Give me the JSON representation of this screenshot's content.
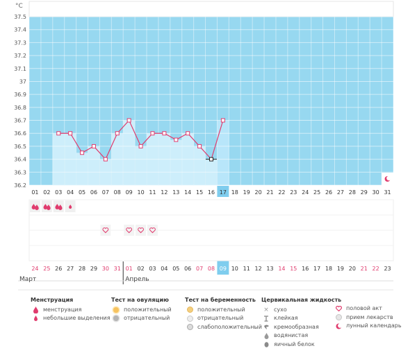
{
  "chart_data": {
    "type": "line",
    "unit_label": "°C",
    "y_ticks": [
      "36.2",
      "36.3",
      "36.4",
      "36.5",
      "36.6",
      "36.7",
      "36.8",
      "36.9",
      "37",
      "37.1",
      "37.2",
      "37.3",
      "37.4",
      "37.5"
    ],
    "ylim": [
      36.2,
      37.5
    ],
    "days": [
      "01",
      "02",
      "03",
      "04",
      "05",
      "06",
      "07",
      "08",
      "09",
      "10",
      "11",
      "12",
      "13",
      "14",
      "15",
      "16",
      "17",
      "18",
      "19",
      "20",
      "21",
      "22",
      "23",
      "24",
      "25",
      "26",
      "27",
      "28",
      "29",
      "30",
      "31"
    ],
    "temperatures": [
      null,
      null,
      36.6,
      36.6,
      36.45,
      36.5,
      36.4,
      36.6,
      36.7,
      36.5,
      36.6,
      36.6,
      36.55,
      36.6,
      36.5,
      36.4,
      36.7,
      null,
      null,
      null,
      null,
      null,
      null,
      null,
      null,
      null,
      null,
      null,
      null,
      null,
      null
    ],
    "selected_day": "17",
    "cycle_dates": [
      "24",
      "25",
      "26",
      "27",
      "28",
      "29",
      "30",
      "31",
      "01",
      "02",
      "03",
      "04",
      "05",
      "06",
      "07",
      "08",
      "09",
      "10",
      "11",
      "12",
      "13",
      "14",
      "15",
      "16",
      "17",
      "18",
      "19",
      "20",
      "21",
      "22",
      "23"
    ],
    "red_date_index": [
      0,
      1,
      6,
      7,
      8,
      14,
      15,
      21,
      22,
      28,
      29
    ],
    "menstruation_days": [
      "01",
      "02",
      "03"
    ],
    "light_spotting_days": [
      "04"
    ],
    "intercourse_days": [
      "07",
      "09",
      "10",
      "11"
    ],
    "lunar_day": "31",
    "month_start": "Март",
    "month_next": "Апрель",
    "accent_color": "#e03c6e",
    "fill_color": "#97d8f0",
    "bar_color": "#cdeefb"
  },
  "legend": {
    "menstruation": {
      "title": "Менструация",
      "items": [
        "менструация",
        "небольшие выделения"
      ]
    },
    "ovulation": {
      "title": "Тест на овуляцию",
      "items": [
        "положительный",
        "отрицательный"
      ]
    },
    "pregnancy": {
      "title": "Тест на беременность",
      "items": [
        "положительный",
        "отрицательный",
        "слабоположительный"
      ]
    },
    "cervical": {
      "title": "Цервикальная жидкость",
      "items": [
        "сухо",
        "клейкая",
        "кремообразная",
        "водянистая",
        "яичный белок"
      ]
    },
    "other": {
      "items": [
        "половой акт",
        "прием лекарств",
        "лунный календарь"
      ]
    }
  }
}
